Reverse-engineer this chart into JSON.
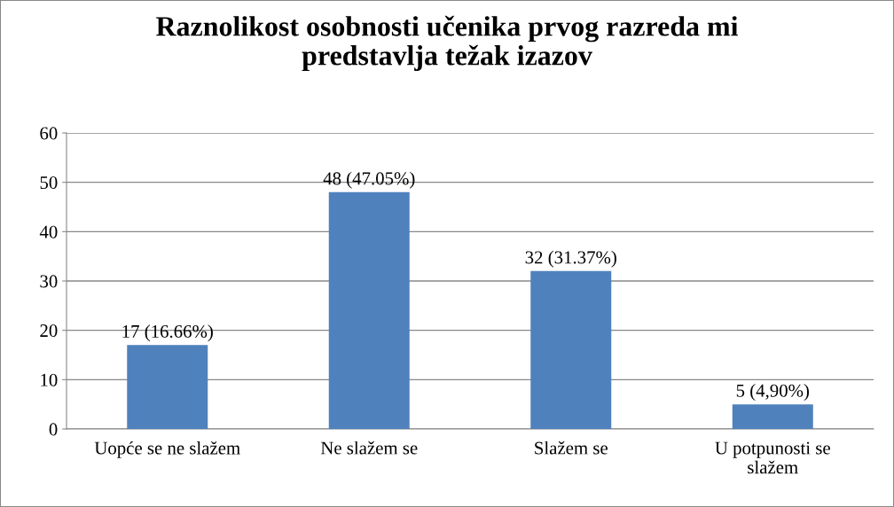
{
  "chart_data": {
    "type": "bar",
    "title": "Raznolikost osobnosti učenika prvog razreda mi\npredstavlja težak izazov",
    "categories": [
      "Uopće se ne slažem",
      "Ne slažem se",
      "Slažem se",
      "U potpunosti se\nslažem"
    ],
    "values": [
      17,
      48,
      32,
      5
    ],
    "value_labels": [
      "17 (16.66%)",
      "48 (47.05%)",
      "32 (31.37%)",
      "5 (4,90%)"
    ],
    "color": "#4f81bd",
    "ylim": [
      0,
      60
    ],
    "yticks": [
      0,
      10,
      20,
      30,
      40,
      50,
      60
    ],
    "grid": "y",
    "legend": false
  }
}
